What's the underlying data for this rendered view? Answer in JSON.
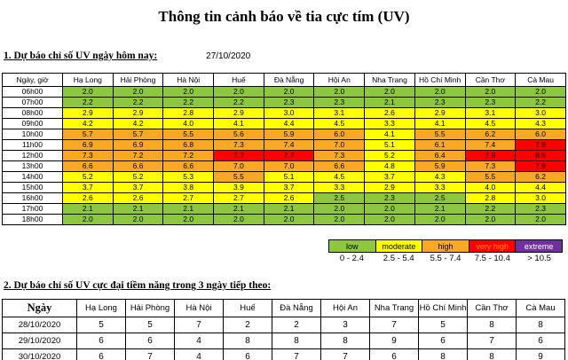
{
  "title": "Thông tin cảnh báo về tia cực tím (UV)",
  "section1": {
    "heading": "1. Dự báo chỉ số UV ngày hôm nay:",
    "date": "27/10/2020",
    "table": {
      "corner": "Ngày, giờ",
      "cities": [
        "Hạ Long",
        "Hải Phòng",
        "Hà Nội",
        "Huế",
        "Đà Nẵng",
        "Hội An",
        "Nha Trang",
        "Hồ Chí Minh",
        "Cần Thơ",
        "Cà Mau"
      ],
      "rows": [
        {
          "time": "06h00",
          "values": [
            "2.0",
            "2.0",
            "2.0",
            "2.0",
            "2.0",
            "2.0",
            "2.0",
            "2.0",
            "2.0",
            "2.0"
          ]
        },
        {
          "time": "07h00",
          "values": [
            "2.2",
            "2.2",
            "2.2",
            "2.2",
            "2.3",
            "2.3",
            "2.1",
            "2.3",
            "2.3",
            "2.2"
          ]
        },
        {
          "time": "08h00",
          "values": [
            "2.9",
            "2.9",
            "2.8",
            "2.9",
            "3.0",
            "3.1",
            "2.6",
            "2.9",
            "3.1",
            "3.0"
          ]
        },
        {
          "time": "09h00",
          "values": [
            "4.2",
            "4.2",
            "4.0",
            "4.1",
            "4.4",
            "4.5",
            "3.3",
            "4.1",
            "4.5",
            "4.3"
          ]
        },
        {
          "time": "10h00",
          "values": [
            "5.7",
            "5.7",
            "5.5",
            "5.6",
            "5.9",
            "6.0",
            "4.1",
            "5.5",
            "6.2",
            "6.0"
          ]
        },
        {
          "time": "11h00",
          "values": [
            "6.9",
            "6.9",
            "6.8",
            "7.3",
            "7.4",
            "7.0",
            "5.1",
            "6.1",
            "7.4",
            "7.9"
          ]
        },
        {
          "time": "12h00",
          "values": [
            "7.3",
            "7.2",
            "7.2",
            "7.7",
            "7.7",
            "7.3",
            "5.2",
            "6.4",
            "7.9",
            "8.5"
          ]
        },
        {
          "time": "13h00",
          "values": [
            "6.6",
            "6.6",
            "6.6",
            "7.0",
            "7.0",
            "6.6",
            "4.8",
            "5.9",
            "7.3",
            "7.9"
          ]
        },
        {
          "time": "14h00",
          "values": [
            "5.2",
            "5.2",
            "5.3",
            "5.5",
            "5.1",
            "4.5",
            "3.7",
            "4.3",
            "5.5",
            "6.2"
          ]
        },
        {
          "time": "15h00",
          "values": [
            "3.7",
            "3.7",
            "3.8",
            "3.9",
            "3.7",
            "3.3",
            "2.9",
            "3.3",
            "4.0",
            "4.4"
          ]
        },
        {
          "time": "16h00",
          "values": [
            "2.6",
            "2.6",
            "2.7",
            "2.7",
            "2.6",
            "2.5",
            "2.3",
            "2.5",
            "2.8",
            "3.0"
          ]
        },
        {
          "time": "17h00",
          "values": [
            "2.1",
            "2.1",
            "2.1",
            "2.1",
            "2.1",
            "2.0",
            "2.0",
            "2.1",
            "2.2",
            "2.3"
          ]
        },
        {
          "time": "18h00",
          "values": [
            "2.0",
            "2.0",
            "2.0",
            "2.0",
            "2.0",
            "2.0",
            "2.0",
            "2.0",
            "2.0",
            "2.0"
          ]
        }
      ]
    }
  },
  "legend": {
    "items": [
      {
        "label": "low",
        "range": "0 - 2.4",
        "bg": "#8DC63F",
        "text": "#000000"
      },
      {
        "label": "moderate",
        "range": "2.5 - 5.4",
        "bg": "#FFFF00",
        "text": "#000000"
      },
      {
        "label": "high",
        "range": "5.5 - 7.4",
        "bg": "#F9A825",
        "text": "#000000"
      },
      {
        "label": "very high",
        "range": "7.5 - 10.4",
        "bg": "#FF0000",
        "text": "#FF9900"
      },
      {
        "label": "extreme",
        "range": "> 10.5",
        "bg": "#7030A0",
        "text": "#FFFFFF"
      }
    ]
  },
  "section2": {
    "heading": "2. Dự báo chỉ số UV cực đại tiềm năng trong 3 ngày tiếp theo:",
    "table": {
      "corner": "Ngày",
      "cities": [
        "Hạ Long",
        "Hải Phòng",
        "Hà Nội",
        "Huế",
        "Đà Nẵng",
        "Hội An",
        "Nha Trang",
        "Hồ Chí Minh",
        "Cần Thơ",
        "Cà Mau"
      ],
      "rows": [
        {
          "date": "28/10/2020",
          "values": [
            "5",
            "5",
            "7",
            "2",
            "2",
            "3",
            "7",
            "5",
            "8",
            "8"
          ]
        },
        {
          "date": "29/10/2020",
          "values": [
            "6",
            "6",
            "4",
            "8",
            "8",
            "8",
            "9",
            "6",
            "7",
            "6"
          ]
        },
        {
          "date": "30/10/2020",
          "values": [
            "6",
            "7",
            "4",
            "6",
            "7",
            "7",
            "6",
            "8",
            "8",
            "9"
          ]
        }
      ]
    }
  },
  "colors": {
    "low": "#8DC63F",
    "moderate": "#FFFF00",
    "high": "#F9A825",
    "very_high": "#FF0000",
    "extreme": "#7030A0"
  }
}
